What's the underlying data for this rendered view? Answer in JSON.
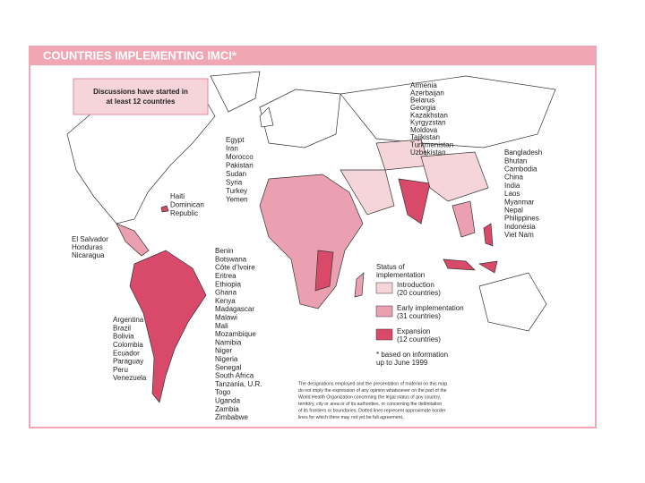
{
  "header": {
    "title": "COUNTRIES IMPLEMENTING IMCI*"
  },
  "callout": {
    "lines": [
      "Discussions have started in",
      "at least 12 countries"
    ]
  },
  "country_lists": {
    "cis": [
      "Armenia",
      "Azerbaijan",
      "Belarus",
      "Georgia",
      "Kazakhstan",
      "Kyrgyzstan",
      "Moldova",
      "Tajikistan",
      "Turkmenistan",
      "Uzbekistan"
    ],
    "middle_east": [
      "Egypt",
      "Iran",
      "Morocco",
      "Pakistan",
      "Sudan",
      "Syria",
      "Turkey",
      "Yemen"
    ],
    "caribbean": [
      "Haiti",
      "Dominican",
      "Republic"
    ],
    "central_america": [
      "El Salvador",
      "Honduras",
      "Nicaragua"
    ],
    "asia": [
      "Bangladesh",
      "Bhutan",
      "Cambodia",
      "China",
      "India",
      "Laos",
      "Myanmar",
      "Nepal",
      "Philippines",
      "Indonesia",
      "Viet Nam"
    ],
    "africa": [
      "Benin",
      "Botswana",
      "Côte d'Ivoire",
      "Eritrea",
      "Ethiopia",
      "Ghana",
      "Kenya",
      "Madagascar",
      "Malawi",
      "Mali",
      "Mozambique",
      "Namibia",
      "Niger",
      "Nigeria",
      "Senegal",
      "South Africa",
      "Tanzania, U.R.",
      "Togo",
      "Uganda",
      "Zambia",
      "Zimbabwe"
    ],
    "south_america": [
      "Argentina",
      "Brazil",
      "Bolivia",
      "Colombia",
      "Ecuador",
      "Paraguay",
      "Peru",
      "Venezuela"
    ]
  },
  "legend": {
    "title": [
      "Status of",
      "implementation"
    ],
    "items": [
      {
        "lines": [
          "Introduction",
          "(20 countries)"
        ]
      },
      {
        "lines": [
          "Early implementation",
          "(31 countries)"
        ]
      },
      {
        "lines": [
          "Expansion",
          "(12 countries)"
        ]
      }
    ],
    "footnote": [
      "* based on information",
      "up to June 1999"
    ]
  },
  "disclaimer": [
    "The designations employed and the presentation of material on this map",
    "do not imply the expression of any opinion whatsoever on the part of the",
    "World Health Organization concerning the legal status of any country,",
    "territory, city or area or of its authorities, or concerning the delimitation",
    "of its frontiers or boundaries. Dotted lines represent approximate border",
    "lines for which there may not yet be full agreement."
  ]
}
